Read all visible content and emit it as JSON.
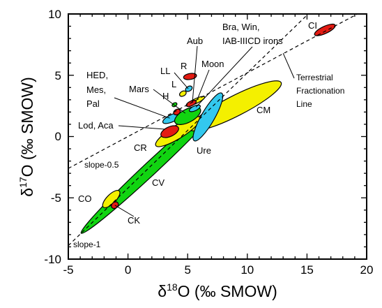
{
  "chart_data": {
    "type": "scatter",
    "xlabel": "δ18O (‰ SMOW)",
    "ylabel": "δ17O (‰ SMOW)",
    "xlabel_parts": {
      "delta": "δ",
      "sup": "18",
      "rest": "O (‰ SMOW)"
    },
    "ylabel_parts": {
      "delta": "δ",
      "sup": "17",
      "rest": "O (‰ SMOW)"
    },
    "xlim": [
      -5,
      20
    ],
    "ylim": [
      -10,
      10
    ],
    "xticks": [
      -5,
      0,
      5,
      10,
      15,
      20
    ],
    "yticks": [
      -10,
      -5,
      0,
      5,
      10
    ],
    "xtick_labels": [
      "-5",
      "0",
      "5",
      "10",
      "15",
      "20"
    ],
    "ytick_labels": [
      "-10",
      "-5",
      "0",
      "5",
      "10"
    ],
    "grid": false,
    "colors": {
      "green": "#11d411",
      "yellow": "#f4f000",
      "cyan": "#33c8ee",
      "red": "#e41b13",
      "outline": "#000000"
    },
    "lines": [
      {
        "label": "Terrestrial Fractionation Line",
        "slope": 0.52,
        "intercept": 0,
        "style": "dashed"
      },
      {
        "label": "slope-0.5",
        "slope": 0.52,
        "intercept": 0,
        "style": "dashed"
      },
      {
        "label": "slope-1",
        "slope": 0.94,
        "intercept": -4.2,
        "style": "dashed"
      }
    ],
    "regions": [
      {
        "name": "CV",
        "color": "green",
        "cx": 2.0,
        "cy": -2.5,
        "rx": 8.1,
        "ry": 0.55,
        "angle": 43
      },
      {
        "name": "CM",
        "color": "yellow",
        "cx": 9.0,
        "cy": 2.5,
        "rx": 4.3,
        "ry": 0.85,
        "angle": 27
      },
      {
        "name": "CR",
        "color": "yellow",
        "cx": 4.2,
        "cy": 0.4,
        "rx": 2.2,
        "ry": 0.55,
        "angle": 32
      },
      {
        "name": "Ure",
        "color": "cyan",
        "cx": 6.7,
        "cy": 1.6,
        "rx": 2.3,
        "ry": 0.55,
        "angle": 60
      },
      {
        "name": "HED, Mes, Pal",
        "color": "cyan",
        "cx": 3.7,
        "cy": 1.5,
        "rx": 0.85,
        "ry": 0.3,
        "angle": 25
      },
      {
        "name": "Mars",
        "color": "green",
        "cx": 5.0,
        "cy": 1.7,
        "rx": 1.2,
        "ry": 0.55,
        "angle": 28
      },
      {
        "name": "Lod, Aca",
        "color": "red",
        "cx": 3.5,
        "cy": 0.4,
        "rx": 0.8,
        "ry": 0.4,
        "angle": 25
      },
      {
        "name": "Moon",
        "color": "yellow",
        "cx": 5.7,
        "cy": 2.9,
        "rx": 0.8,
        "ry": 0.2,
        "angle": 25
      },
      {
        "name": "Aub",
        "color": "red",
        "cx": 5.3,
        "cy": 2.7,
        "rx": 0.45,
        "ry": 0.2,
        "angle": 25
      },
      {
        "name": "Bra, Win, IAB-IIICD irons",
        "color": "cyan",
        "cx": 5.6,
        "cy": 2.3,
        "rx": 0.5,
        "ry": 0.2,
        "angle": 25
      },
      {
        "name": "H",
        "color": "red",
        "cx": 4.1,
        "cy": 2.0,
        "rx": 0.3,
        "ry": 0.22,
        "angle": 30
      },
      {
        "name": "H-green",
        "color": "green",
        "cx": 3.9,
        "cy": 2.6,
        "rx": 0.22,
        "ry": 0.15,
        "angle": 30
      },
      {
        "name": "L",
        "color": "yellow",
        "cx": 4.6,
        "cy": 3.5,
        "rx": 0.3,
        "ry": 0.2,
        "angle": 30
      },
      {
        "name": "LL",
        "color": "cyan",
        "cx": 5.1,
        "cy": 3.9,
        "rx": 0.3,
        "ry": 0.2,
        "angle": 30
      },
      {
        "name": "R",
        "color": "red",
        "cx": 5.2,
        "cy": 4.9,
        "rx": 0.55,
        "ry": 0.25,
        "angle": 10
      },
      {
        "name": "CO",
        "color": "yellow",
        "cx": -1.4,
        "cy": -5.1,
        "rx": 0.95,
        "ry": 0.38,
        "angle": 45
      },
      {
        "name": "CK",
        "color": "red",
        "cx": -1.1,
        "cy": -5.6,
        "rx": 0.32,
        "ry": 0.25,
        "angle": 40
      },
      {
        "name": "CI",
        "color": "red",
        "cx": 16.5,
        "cy": 8.7,
        "rx": 0.95,
        "ry": 0.3,
        "angle": 25
      }
    ],
    "annotations": [
      {
        "text": "CI"
      },
      {
        "text": "Bra, Win,"
      },
      {
        "text": "IAB-IIICD irons"
      },
      {
        "text": "Aub"
      },
      {
        "text": "Moon"
      },
      {
        "text": "R"
      },
      {
        "text": "LL"
      },
      {
        "text": "L"
      },
      {
        "text": "H"
      },
      {
        "text": "HED,"
      },
      {
        "text": "Mes,"
      },
      {
        "text": "Pal"
      },
      {
        "text": "Mars"
      },
      {
        "text": "Lod, Aca"
      },
      {
        "text": "CR"
      },
      {
        "text": "Ure"
      },
      {
        "text": "CM"
      },
      {
        "text": "CV"
      },
      {
        "text": "CO"
      },
      {
        "text": "CK"
      },
      {
        "text": "Terrestrial"
      },
      {
        "text": "Fractionation"
      },
      {
        "text": "Line"
      },
      {
        "text": "slope-0.5"
      },
      {
        "text": "slope-1"
      }
    ]
  }
}
